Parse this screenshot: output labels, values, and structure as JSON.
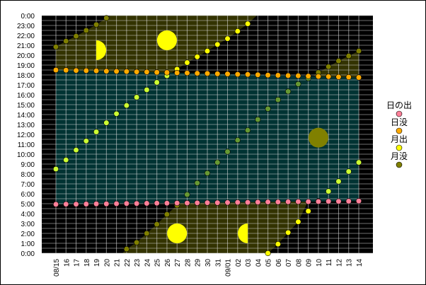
{
  "chart_data": {
    "type": "scatter",
    "title": "",
    "xlabel": "",
    "ylabel": "",
    "y_ticks": [
      "0:00",
      "1:00",
      "2:00",
      "3:00",
      "4:00",
      "5:00",
      "6:00",
      "7:00",
      "8:00",
      "9:00",
      "10:00",
      "11:00",
      "12:00",
      "13:00",
      "14:00",
      "15:00",
      "16:00",
      "17:00",
      "18:00",
      "19:00",
      "20:00",
      "21:00",
      "22:00",
      "23:00",
      "0:00"
    ],
    "ylim": [
      "0:00",
      "24:00"
    ],
    "x_tick_labels": [
      "08/15",
      "16",
      "17",
      "18",
      "19",
      "20",
      "21",
      "22",
      "23",
      "24",
      "25",
      "26",
      "27",
      "28",
      "29",
      "30",
      "31",
      "09/01",
      "02",
      "03",
      "04",
      "05",
      "06",
      "07",
      "08",
      "09",
      "10",
      "11",
      "12",
      "13",
      "14"
    ],
    "grid": true,
    "legend_position": "right",
    "colors": {
      "background": "#000000",
      "daytime": "#003333",
      "moon_up_night": "#333300",
      "sunrise": "#ff8099",
      "sunset": "#ffaa00",
      "moonrise": "#ffff00",
      "moonrise_day": "#ccff33",
      "moonset": "#808000",
      "moonset_day": "#669933",
      "moon_icon": "#ffff00",
      "new_moon_icon": "#808000"
    },
    "series": [
      {
        "name": "日の出",
        "marker": "#ff8099",
        "values": [
          "4:56",
          "4:57",
          "4:57",
          "4:58",
          "4:59",
          "4:59",
          "5:00",
          "5:01",
          "5:01",
          "5:02",
          "5:03",
          "5:03",
          "5:04",
          "5:04",
          "5:05",
          "5:06",
          "5:06",
          "5:07",
          "5:08",
          "5:08",
          "5:09",
          "5:10",
          "5:10",
          "5:11",
          "5:12",
          "5:12",
          "5:13",
          "5:14",
          "5:14",
          "5:15",
          "5:16"
        ]
      },
      {
        "name": "日没",
        "marker": "#ffaa00",
        "values": [
          "18:30",
          "18:29",
          "18:27",
          "18:26",
          "18:25",
          "18:23",
          "18:22",
          "18:21",
          "18:19",
          "18:18",
          "18:16",
          "18:15",
          "18:13",
          "18:12",
          "18:10",
          "18:09",
          "18:07",
          "18:06",
          "18:04",
          "18:03",
          "18:01",
          "17:59",
          "17:58",
          "17:56",
          "17:55",
          "17:53",
          "17:51",
          "17:50",
          "17:48",
          "17:47",
          "17:45"
        ]
      },
      {
        "name": "月出",
        "marker": "#ffff00",
        "values": [
          "8:30",
          "9:25",
          "10:25",
          "11:20",
          "12:15",
          "13:10",
          "14:05",
          "14:55",
          "15:45",
          "16:30",
          "17:15",
          "17:55",
          "18:35",
          "19:15",
          "19:50",
          "20:25",
          "21:05",
          "21:40",
          "22:25",
          "23:10",
          null,
          "0:00",
          "0:55",
          "2:05",
          "3:10",
          "4:15",
          "5:15",
          "6:15",
          "7:15",
          "8:15",
          "9:10"
        ]
      },
      {
        "name": "月没",
        "marker": "#808000",
        "values": [
          "20:50",
          "21:25",
          "21:55",
          "22:30",
          "23:05",
          "23:45",
          null,
          "0:25",
          "1:05",
          "2:00",
          "2:55",
          "3:55",
          "4:50",
          "5:55",
          "7:05",
          "8:05",
          "9:10",
          "10:15",
          "11:25",
          "12:25",
          "13:30",
          "14:35",
          "15:30",
          "16:20",
          "17:05",
          "17:40",
          "18:15",
          "18:50",
          "19:25",
          "19:55",
          "20:25"
        ]
      }
    ],
    "moon_phase_markers": [
      {
        "date": "19",
        "time": "20:30",
        "phase": "first-quarter"
      },
      {
        "date": "26",
        "time": "21:30",
        "phase": "full"
      },
      {
        "date": "27",
        "time": "2:00",
        "phase": "full"
      },
      {
        "date": "03",
        "time": "2:00",
        "phase": "last-quarter"
      },
      {
        "date": "10",
        "time": "11:40",
        "phase": "new"
      }
    ]
  }
}
